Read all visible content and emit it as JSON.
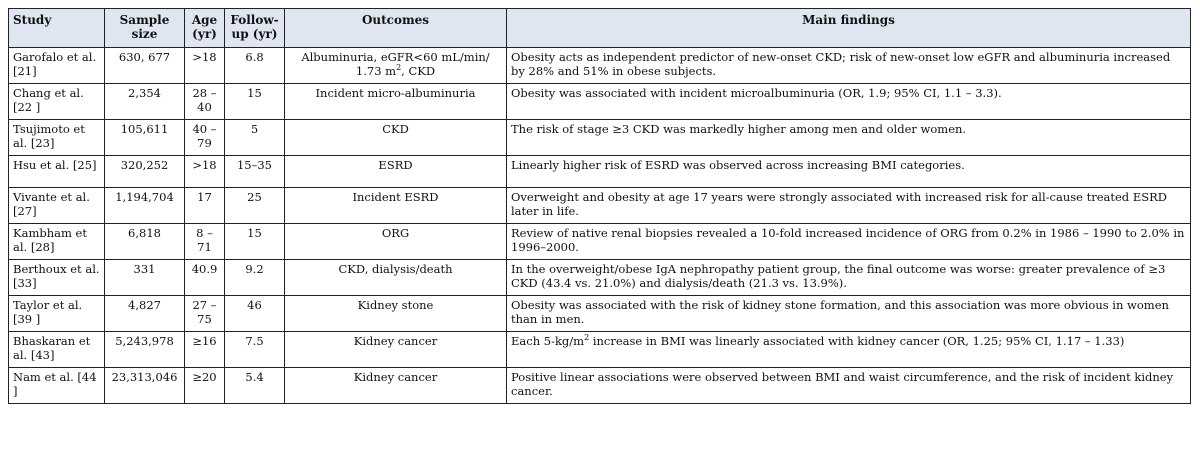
{
  "headers": {
    "study": "Study",
    "sample_size": "Sample size",
    "age": "Age (yr)",
    "follow_up": "Follow-up (yr)",
    "outcomes": "Outcomes",
    "main_findings": "Main findings"
  },
  "rows": [
    {
      "study": "Garofalo et al. [21]",
      "sample_size": "630, 677",
      "age": ">18",
      "follow_up": "6.8",
      "outcomes_pre": "Albuminuria, eGFR<60 mL/min/ 1.73 m",
      "outcomes_sup": "2",
      "outcomes_post": ", CKD",
      "findings": "Obesity acts as independent predictor of new-onset CKD; risk of new-onset low eGFR and albuminuria increased by 28% and 51% in obese subjects."
    },
    {
      "study": "Chang et al. [22 ]",
      "sample_size": "2,354",
      "age": "28 – 40",
      "follow_up": "15",
      "outcomes": "Incident micro-albuminuria",
      "findings": "Obesity was associated with incident microalbuminuria (OR, 1.9; 95% CI, 1.1 – 3.3)."
    },
    {
      "study": "Tsujimoto et al. [23]",
      "sample_size": "105,611",
      "age": "40 – 79",
      "follow_up": "5",
      "outcomes": "CKD",
      "findings": "The risk of stage ≥3 CKD was markedly higher among men and older women."
    },
    {
      "study": "Hsu et al. [25]",
      "sample_size": "320,252",
      "age": ">18",
      "follow_up": "15–35",
      "outcomes": "ESRD",
      "findings": "Linearly higher risk of ESRD was observed across increasing BMI categories."
    },
    {
      "study": "Vivante et al. [27]",
      "sample_size": "1,194,704",
      "age": "17",
      "follow_up": "25",
      "outcomes": "Incident ESRD",
      "findings": "Overweight and obesity at age 17 years were strongly associated with increased risk for all-cause treated ESRD later in life."
    },
    {
      "study": "Kambham et al. [28]",
      "sample_size": "6,818",
      "age": "8 – 71",
      "follow_up": "15",
      "outcomes": "ORG",
      "findings": "Review of native renal biopsies revealed a 10-fold increased incidence of ORG from 0.2% in 1986 – 1990 to 2.0% in 1996–2000."
    },
    {
      "study": "Berthoux et al. [33]",
      "sample_size": "331",
      "age": "40.9",
      "follow_up": "9.2",
      "outcomes": "CKD, dialysis/death",
      "findings": "In the overweight/obese IgA nephropathy patient group, the final outcome was worse: greater prevalence of ≥3 CKD (43.4 vs. 21.0%) and dialysis/death (21.3 vs. 13.9%)."
    },
    {
      "study": "Taylor et al. [39 ]",
      "sample_size": "4,827",
      "age": "27 – 75",
      "follow_up": "46",
      "outcomes": "Kidney stone",
      "findings": "Obesity was associated with the risk of kidney stone formation, and this association was more obvious in women than in men."
    },
    {
      "study": "Bhaskaran et al. [43]",
      "sample_size": "5,243,978",
      "age": "≥16",
      "follow_up": "7.5",
      "outcomes": "Kidney cancer",
      "findings_pre": "Each 5-kg/m",
      "findings_sup": "2",
      "findings_post": " increase in BMI was linearly associated with kidney cancer (OR, 1.25; 95% CI, 1.17 – 1.33)"
    },
    {
      "study": "Nam et al. [44 ]",
      "sample_size": "23,313,046",
      "age": "≥20",
      "follow_up": "5.4",
      "outcomes": "Kidney cancer",
      "findings": "Positive linear associations were observed between BMI and waist circumference, and the risk of incident kidney cancer."
    }
  ]
}
